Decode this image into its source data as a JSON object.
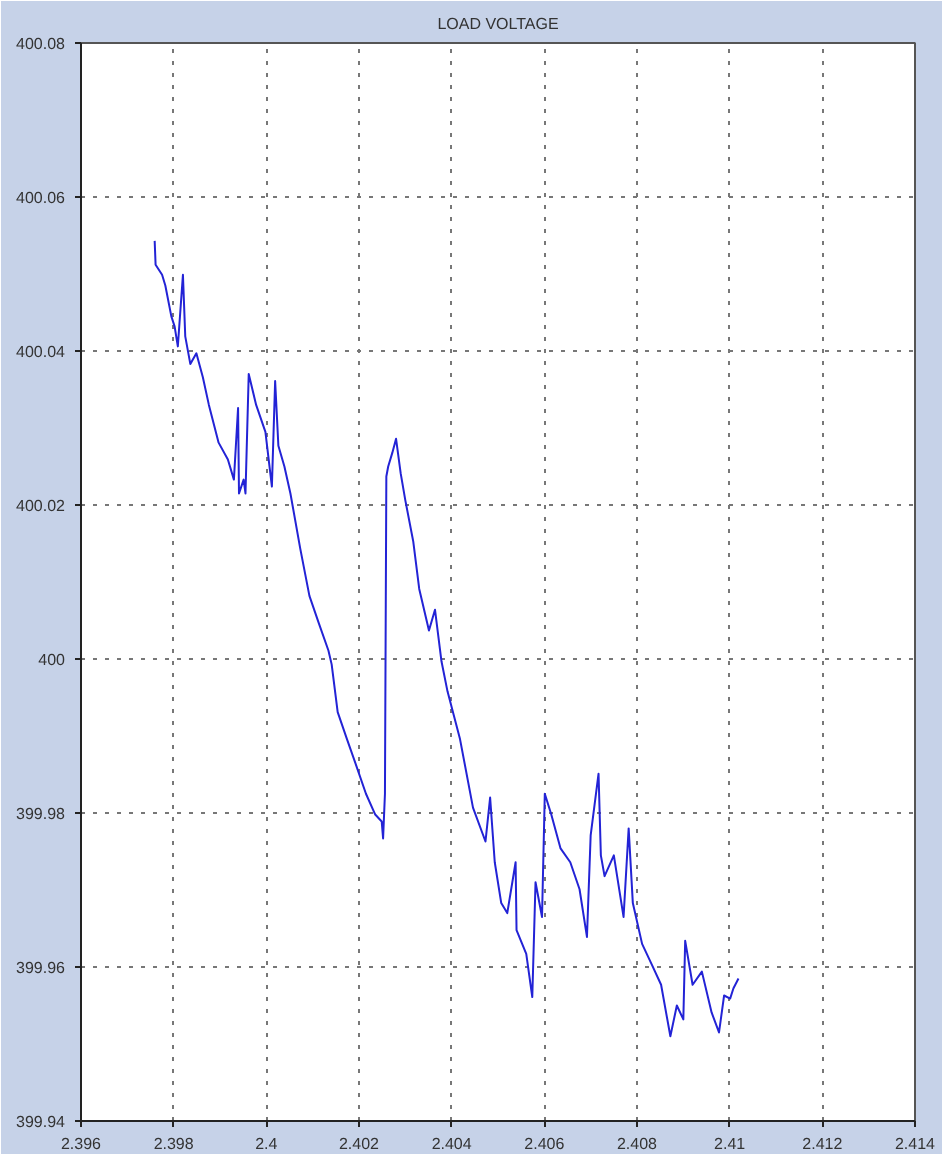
{
  "chart_data": {
    "type": "line",
    "title": "LOAD VOLTAGE",
    "xlim": [
      2.396,
      2.414
    ],
    "ylim": [
      399.94,
      400.08
    ],
    "xticks": [
      2.396,
      2.398,
      2.4,
      2.402,
      2.404,
      2.406,
      2.408,
      2.41,
      2.412,
      2.414
    ],
    "yticks": [
      399.94,
      399.96,
      399.98,
      400,
      400.02,
      400.04,
      400.06,
      400.08
    ],
    "grid": true,
    "line_style": "solid",
    "series": [
      {
        "color": "#2323d6",
        "x": [
          2.39759,
          2.39761,
          2.39775,
          2.39782,
          2.39795,
          2.39802,
          2.39809,
          2.3982,
          2.39825,
          2.39836,
          2.39849,
          2.39863,
          2.39876,
          2.39897,
          2.39917,
          2.3993,
          2.39939,
          2.39941,
          2.39951,
          2.39955,
          2.39962,
          2.39978,
          2.39998,
          2.40012,
          2.40019,
          2.40026,
          2.40039,
          2.40052,
          2.40073,
          2.40093,
          2.40113,
          2.40134,
          2.40141,
          2.40154,
          2.40174,
          2.40195,
          2.40215,
          2.40235,
          2.40249,
          2.40252,
          2.40256,
          2.40259,
          2.40263,
          2.40272,
          2.4028,
          2.4029,
          2.403,
          2.40317,
          2.4033,
          2.40351,
          2.40364,
          2.40378,
          2.40391,
          2.40418,
          2.40446,
          2.40473,
          2.40483,
          2.40493,
          2.40507,
          2.4052,
          2.40538,
          2.4054,
          2.40561,
          2.40574,
          2.40581,
          2.40595,
          2.40601,
          2.40615,
          2.40635,
          2.40656,
          2.40676,
          2.40692,
          2.407,
          2.40717,
          2.40722,
          2.4073,
          2.4075,
          2.40771,
          2.40782,
          2.40791,
          2.40811,
          2.40832,
          2.40852,
          2.40872,
          2.40886,
          2.409,
          2.40904,
          2.4092,
          2.4094,
          2.40961,
          2.40977,
          2.40988,
          2.41001,
          2.41008,
          2.41019
        ],
        "values": [
          400.0543,
          400.0512,
          400.0499,
          400.0485,
          400.0445,
          400.0432,
          400.0406,
          400.0499,
          400.0419,
          400.0383,
          400.0397,
          400.0366,
          400.033,
          400.0281,
          400.0259,
          400.0233,
          400.0326,
          400.0215,
          400.0233,
          400.0215,
          400.037,
          400.033,
          400.0295,
          400.0224,
          400.0361,
          400.0277,
          400.025,
          400.0215,
          400.0144,
          400.0082,
          400.0047,
          400.0011,
          399.9993,
          399.9931,
          399.9896,
          399.986,
          399.9825,
          399.9798,
          399.9789,
          399.9767,
          399.9825,
          400.0237,
          400.025,
          400.0268,
          400.0286,
          400.0241,
          400.0206,
          400.0153,
          400.0091,
          400.0037,
          400.0064,
          399.9997,
          399.9958,
          399.9896,
          399.9807,
          399.9763,
          399.982,
          399.9736,
          399.9683,
          399.967,
          399.9736,
          399.9648,
          399.9617,
          399.9561,
          399.971,
          399.9665,
          399.9825,
          399.9798,
          399.9754,
          399.9736,
          399.9701,
          399.9639,
          399.9771,
          399.9851,
          399.9745,
          399.9718,
          399.9745,
          399.9665,
          399.978,
          399.9683,
          399.963,
          399.9603,
          399.9577,
          399.951,
          399.955,
          399.9532,
          399.9634,
          399.9577,
          399.9594,
          399.9541,
          399.9515,
          399.9563,
          399.9559,
          399.9572,
          399.9585
        ]
      }
    ]
  }
}
